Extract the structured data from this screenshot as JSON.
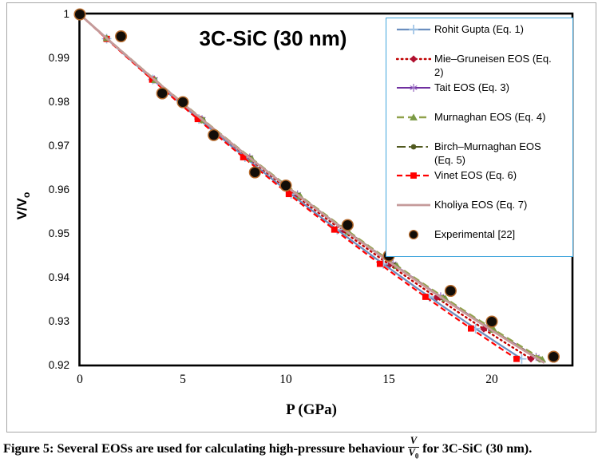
{
  "figure": {
    "title": "3C-SiC (30 nm)"
  },
  "axes": {
    "x_label": "P (GPa)",
    "y_label_main": "V/V",
    "y_label_sub": "o",
    "x_ticks": [
      "0",
      "5",
      "10",
      "15",
      "20"
    ],
    "y_ticks": [
      "1",
      "0.99",
      "0.98",
      "0.97",
      "0.96",
      "0.95",
      "0.94",
      "0.93",
      "0.92"
    ],
    "x_range": [
      0,
      23.9
    ],
    "y_range": [
      0.92,
      1.0
    ],
    "grid": false
  },
  "chart_data": {
    "type": "line",
    "title": "3C-SiC (30 nm)",
    "xlabel": "P (GPa)",
    "ylabel": "V/V0",
    "xlim": [
      0,
      23.9
    ],
    "ylim": [
      0.92,
      1.0
    ],
    "legend_position": "upper right",
    "series": [
      {
        "key": "rohit",
        "label": "Rohit Gupta (Eq. 1)",
        "legend_lines": [
          "Rohit Gupta (Eq. 1)"
        ],
        "color": "#6b8ebf",
        "width": 2.2,
        "dash": [],
        "marker": "plus",
        "marker_color": "#9dc3e6",
        "model": {
          "a": 0.0042972,
          "b": 2.972e-05,
          "p_end": 21.45
        },
        "points": [
          [
            0,
            1.0
          ],
          [
            5,
            0.9793
          ],
          [
            10,
            0.96
          ],
          [
            15,
            0.9422
          ],
          [
            20,
            0.9259
          ],
          [
            21.45,
            0.9215
          ]
        ]
      },
      {
        "key": "mie",
        "label": "Mie–Gruneisen EOS (Eq. 2)",
        "legend_lines": [
          "Mie–Gruneisen EOS (Eq.",
          "2)"
        ],
        "color": "#c00000",
        "width": 2.4,
        "dash": [
          1.6,
          4.2
        ],
        "marker": "diamond",
        "marker_color": "#b01030",
        "model": {
          "a": 0.0042572,
          "b": 3.072e-05,
          "p_end": 21.9
        },
        "points": [
          [
            0,
            1.0
          ],
          [
            5,
            0.9795
          ],
          [
            10,
            0.9605
          ],
          [
            15,
            0.9431
          ],
          [
            20,
            0.9271
          ],
          [
            21.9,
            0.9215
          ]
        ]
      },
      {
        "key": "tait",
        "label": "Tait EOS (Eq. 3)",
        "legend_lines": [
          "Tait EOS (Eq. 3)"
        ],
        "color": "#7030a0",
        "width": 2.0,
        "dash": [],
        "marker": "star",
        "marker_color": "#9a6fc4",
        "model": {
          "a": 0.0042095,
          "b": 3.095e-05,
          "p_end": 22.15
        },
        "points": [
          [
            0,
            1.0
          ],
          [
            5,
            0.9797
          ],
          [
            10,
            0.9608
          ],
          [
            15,
            0.9438
          ],
          [
            20,
            0.9282
          ],
          [
            22.15,
            0.9215
          ]
        ]
      },
      {
        "key": "murnaghan",
        "label": "Murnaghan EOS (Eq. 4)",
        "legend_lines": [
          "Murnaghan EOS (Eq. 4)"
        ],
        "color": "#90a14b",
        "width": 2.6,
        "dash": [
          9,
          5
        ],
        "marker": "triangle",
        "marker_color": "#7a9a45",
        "model": {
          "a": 0.0042024,
          "b": 3.124e-05,
          "p_end": 22.45
        },
        "points": [
          [
            0,
            1.0
          ],
          [
            5,
            0.9798
          ],
          [
            10,
            0.9611
          ],
          [
            15,
            0.944
          ],
          [
            20,
            0.9284
          ],
          [
            22.45,
            0.9215
          ]
        ]
      },
      {
        "key": "birch",
        "label": "Birch–Murnaghan EOS (Eq. 5)",
        "legend_lines": [
          "Birch–Murnaghan EOS",
          "(Eq. 5)"
        ],
        "color": "#50591f",
        "width": 2.0,
        "dash": [
          11,
          4,
          2.5,
          4
        ],
        "marker": "circle",
        "marker_color": "#50591f",
        "model": {
          "a": 0.0042088,
          "b": 3.088e-05,
          "p_end": 22.3
        },
        "points": [
          [
            0,
            1.0
          ],
          [
            5,
            0.9797
          ],
          [
            10,
            0.961
          ],
          [
            15,
            0.9438
          ],
          [
            20,
            0.9282
          ],
          [
            22.3,
            0.9215
          ]
        ]
      },
      {
        "key": "vinet",
        "label": "Vinet EOS (Eq. 6)",
        "legend_lines": [
          "Vinet EOS (Eq. 6)"
        ],
        "color": "#ff0000",
        "width": 2.2,
        "dash": [
          7,
          4
        ],
        "marker": "square",
        "marker_color": "#ff0000",
        "model": {
          "a": 0.0043411,
          "b": 3.011e-05,
          "p_end": 21.2
        },
        "points": [
          [
            0,
            1.0
          ],
          [
            5,
            0.979
          ],
          [
            10,
            0.9596
          ],
          [
            15,
            0.9417
          ],
          [
            20,
            0.9252
          ],
          [
            21.2,
            0.9215
          ]
        ]
      },
      {
        "key": "kholiya",
        "label": "Kholiya EOS (Eq. 7)",
        "legend_lines": [
          "Kholiya EOS (Eq. 7)"
        ],
        "color": "#c59a9a",
        "width": 2.8,
        "dash": [],
        "marker": "none",
        "marker_color": "#c59a9a",
        "model": {
          "a": 0.0042198,
          "b": 3.098e-05,
          "p_end": 22.55
        },
        "points": [
          [
            0,
            1.0
          ],
          [
            5,
            0.9797
          ],
          [
            10,
            0.9613
          ],
          [
            15,
            0.9437
          ],
          [
            20,
            0.928
          ],
          [
            22.55,
            0.9215
          ]
        ]
      }
    ],
    "experimental": {
      "key": "experimental",
      "label": "Experimental [22]",
      "legend_lines": [
        "Experimental [22]"
      ],
      "fill": "#120d08",
      "ring": "#b56a2c",
      "points": [
        [
          0,
          1.0
        ],
        [
          2,
          0.995
        ],
        [
          4,
          0.982
        ],
        [
          5,
          0.98
        ],
        [
          6.5,
          0.9725
        ],
        [
          8.5,
          0.964
        ],
        [
          10,
          0.961
        ],
        [
          13,
          0.952
        ],
        [
          15,
          0.945
        ],
        [
          18,
          0.937
        ],
        [
          20,
          0.93
        ],
        [
          23,
          0.922
        ]
      ]
    }
  },
  "legend": {
    "border_color": "#3fa5dc"
  },
  "caption": {
    "prefix": "Figure 5: Several EOSs are used for calculating high-pressure behaviour",
    "frac_num": "V",
    "frac_den": "V",
    "frac_den_sub": "0",
    "suffix": "for 3C-SiC (30 nm)."
  }
}
